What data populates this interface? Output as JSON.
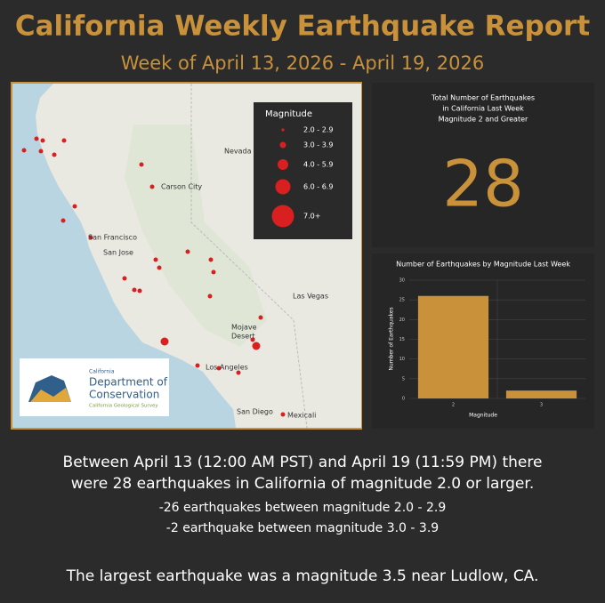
{
  "header": {
    "title": "California Weekly Earthquake Report",
    "subtitle": "Week of April 13, 2026 - April 19, 2026"
  },
  "map": {
    "legend_title": "Magnitude",
    "legend_labels": [
      "2.0 - 2.9",
      "3.0 - 3.9",
      "4.0 - 5.9",
      "6.0 - 6.9",
      "7.0+"
    ],
    "places": {
      "nevada": "Nevada",
      "carson_city": "Carson City",
      "san_francisco": "San Francisco",
      "san_jose": "San Jose",
      "las_vegas": "Las Vegas",
      "mojave_desert": [
        "Mojave",
        "Desert"
      ],
      "los_angeles": "Los Angeles",
      "san_diego": "San Diego",
      "mexicali": "Mexicali"
    },
    "logo": {
      "state": "California",
      "line1": "Department of",
      "line2": "Conservation",
      "survey": "California Geological Survey"
    }
  },
  "stat": {
    "title_lines": [
      "Total Number of Earthquakes",
      "in California Last Week",
      "Magnitude 2 and Greater"
    ],
    "value": 28
  },
  "chart_data": {
    "type": "bar",
    "title": "Number of Earthquakes by Magnitude Last Week",
    "categories": [
      "2",
      "3"
    ],
    "values": [
      26,
      2
    ],
    "color": "#c8913a",
    "ylim": [
      0,
      30
    ],
    "yticks": [
      0,
      5,
      10,
      15,
      20,
      25,
      30
    ],
    "xlabel": "Magnitude",
    "ylabel": "Number of Earthquakes",
    "grid": true
  },
  "summary": {
    "lines": [
      "Between April 13 (12:00 AM PST) and April 19 (11:59 PM) there",
      "were 28 earthquakes in California of magnitude 2.0 or larger.",
      "-26 earthquakes between magnitude 2.0 - 2.9",
      "-2 earthquake between magnitude 3.0 - 3.9",
      "The largest earthquake was a magnitude 3.5 near Ludlow, CA."
    ]
  }
}
